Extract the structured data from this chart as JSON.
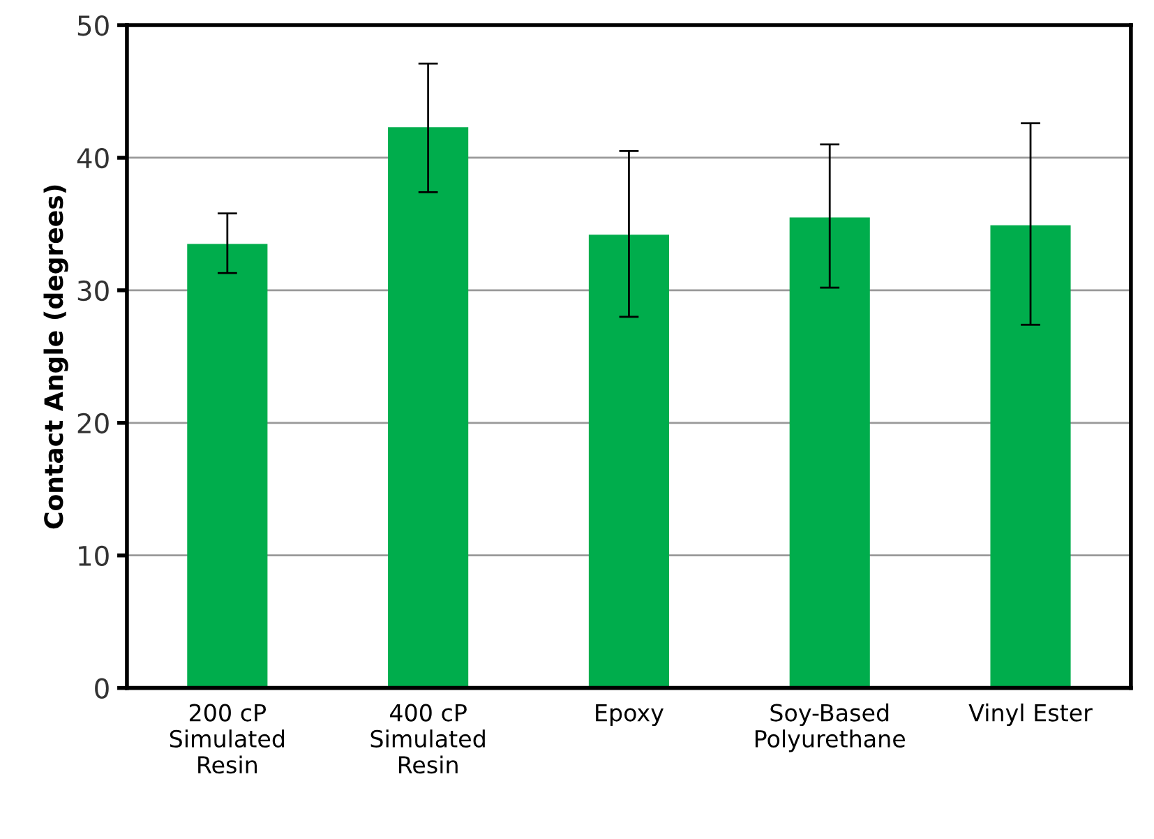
{
  "chart_data": {
    "type": "bar",
    "ylabel": "Contact Angle (degrees)",
    "categories": [
      "200 cP\nSimulated\nResin",
      "400 cP\nSimulated\nResin",
      "Epoxy",
      "Soy-Based\nPolyurethane",
      "Vinyl Ester"
    ],
    "values": [
      33.5,
      42.3,
      34.2,
      35.5,
      34.9
    ],
    "errors": [
      [
        31.3,
        35.8
      ],
      [
        37.4,
        47.1
      ],
      [
        28.0,
        40.5
      ],
      [
        30.2,
        41.0
      ],
      [
        27.4,
        42.6
      ]
    ],
    "color": "#00ad4c",
    "ylim": [
      0,
      50
    ],
    "yticks": [
      0,
      10,
      20,
      30,
      40,
      50
    ],
    "grid": "y"
  }
}
